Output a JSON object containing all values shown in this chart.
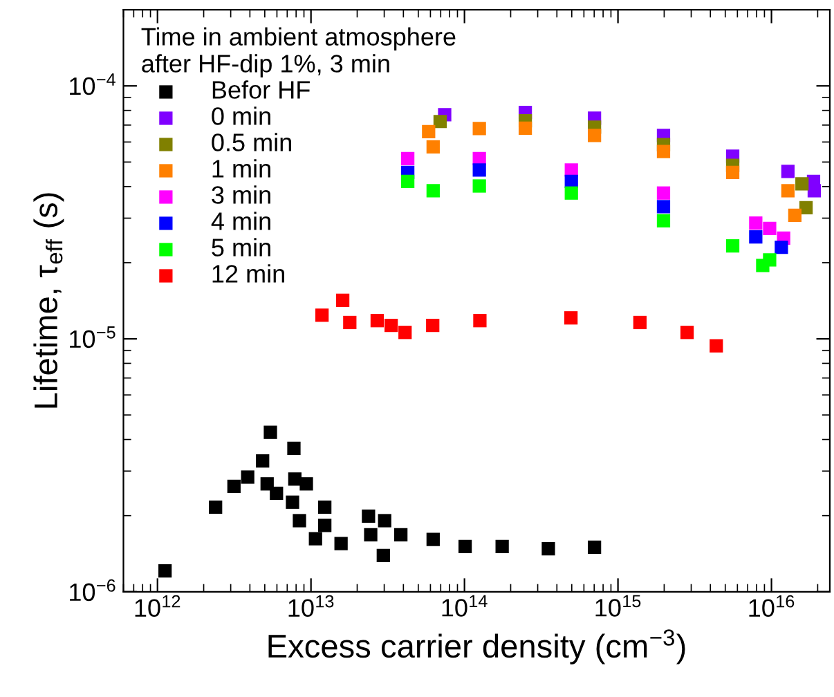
{
  "chart_data": {
    "type": "scatter",
    "xlabel": "Excess carrier density (cm$^{−3}$)",
    "ylabel": "Lifetime, τ$_{eff}$ (s)",
    "legend_title": "Time in ambient atmosphere\nafter HF-dip 1%, 3 min",
    "log": "xy",
    "marker": "square",
    "legend": "top left",
    "grid": false,
    "xlim": [
      600000000000.0,
      2.4e+16
    ],
    "ylim": [
      1e-06,
      0.0002
    ],
    "xticks": [
      {
        "value": 1000000000000.0,
        "label": "10$^{12}$"
      },
      {
        "value": 10000000000000.0,
        "label": "10$^{13}$"
      },
      {
        "value": 100000000000000.0,
        "label": "10$^{14}$"
      },
      {
        "value": 1000000000000000.0,
        "label": "10$^{15}$"
      },
      {
        "value": 1e+16,
        "label": "10$^{16}$"
      }
    ],
    "yticks": [
      {
        "value": 1e-06,
        "label": "10$^{−6}$"
      },
      {
        "value": 1e-05,
        "label": "10$^{−5}$"
      },
      {
        "value": 0.0001,
        "label": "10$^{−4}$"
      }
    ],
    "series": [
      {
        "name": "Befor HF",
        "color": "#000000",
        "x": [
          1120000000000.0,
          2390000000000.0,
          3150000000000.0,
          3870000000000.0,
          4840000000000.0,
          5440000000000.0,
          5180000000000.0,
          5960000000000.0,
          7740000000000.0,
          7850000000000.0,
          7580000000000.0,
          9330000000000.0,
          8410000000000.0,
          10700000000000.0,
          12300000000000.0,
          12300000000000.0,
          15700000000000.0,
          23700000000000.0,
          24500000000000.0,
          30200000000000.0,
          29600000000000.0,
          38500000000000.0,
          62500000000000.0,
          101000000000000.0,
          176000000000000.0,
          352000000000000.0,
          703000000000000.0
        ],
        "values": [
          1.21e-06,
          2.16e-06,
          2.61e-06,
          2.84e-06,
          3.29e-06,
          4.27e-06,
          2.67e-06,
          2.45e-06,
          3.69e-06,
          2.79e-06,
          2.26e-06,
          2.67e-06,
          1.91e-06,
          1.62e-06,
          2.16e-06,
          1.83e-06,
          1.55e-06,
          1.99e-06,
          1.68e-06,
          1.91e-06,
          1.39e-06,
          1.68e-06,
          1.61e-06,
          1.51e-06,
          1.51e-06,
          1.48e-06,
          1.5e-06
        ]
      },
      {
        "name": "0 min",
        "color": "#8000ff",
        "x": [
          74300000000000.0,
          249000000000000.0,
          703000000000000.0,
          1980000000000000.0,
          5590000000000000.0,
          1.28e+16,
          1.88e+16,
          1.9e+16
        ],
        "values": [
          7.69e-05,
          7.85e-05,
          7.46e-05,
          6.37e-05,
          5.27e-05,
          4.59e-05,
          4.19e-05,
          3.85e-05
        ]
      },
      {
        "name": "0.5 min",
        "color": "#808000",
        "x": [
          69400000000000.0,
          249000000000000.0,
          703000000000000.0,
          1980000000000000.0,
          5590000000000000.0,
          1.58e+16,
          1.68e+16
        ],
        "values": [
          7.23e-05,
          7.28e-05,
          6.87e-05,
          5.86e-05,
          4.85e-05,
          4.1e-05,
          3.3e-05
        ]
      },
      {
        "name": "1 min",
        "color": "#ff8000",
        "x": [
          58400000000000.0,
          62500000000000.0,
          125000000000000.0,
          249000000000000.0,
          703000000000000.0,
          1980000000000000.0,
          5590000000000000.0,
          1.28e+16,
          1.42e+16
        ],
        "values": [
          6.59e-05,
          5.74e-05,
          6.78e-05,
          6.81e-05,
          6.37e-05,
          5.5e-05,
          4.55e-05,
          3.85e-05,
          3.08e-05
        ]
      },
      {
        "name": "3 min",
        "color": "#ff00ff",
        "x": [
          42700000000000.0,
          125000000000000.0,
          497000000000000.0,
          1980000000000000.0,
          7900000000000000.0,
          9730000000000000.0,
          1.2e+16
        ],
        "values": [
          5.16e-05,
          5.16e-05,
          4.65e-05,
          3.77e-05,
          2.87e-05,
          2.73e-05,
          2.5e-05
        ]
      },
      {
        "name": "4 min",
        "color": "#0000ff",
        "x": [
          42700000000000.0,
          125000000000000.0,
          497000000000000.0,
          1980000000000000.0,
          7900000000000000.0,
          1.16e+16
        ],
        "values": [
          4.55e-05,
          4.65e-05,
          4.19e-05,
          3.33e-05,
          2.53e-05,
          2.3e-05
        ]
      },
      {
        "name": "5 min",
        "color": "#00ff00",
        "x": [
          42700000000000.0,
          62500000000000.0,
          125000000000000.0,
          497000000000000.0,
          1980000000000000.0,
          5590000000000000.0,
          8770000000000000.0,
          9730000000000000.0
        ],
        "values": [
          4.19e-05,
          3.85e-05,
          4.02e-05,
          3.77e-05,
          2.93e-05,
          2.33e-05,
          1.95e-05,
          2.05e-05
        ]
      },
      {
        "name": "12 min",
        "color": "#ff0000",
        "x": [
          11800000000000.0,
          16100000000000.0,
          17900000000000.0,
          27000000000000.0,
          33300000000000.0,
          41000000000000.0,
          62100000000000.0,
          126000000000000.0,
          494000000000000.0,
          1390000000000000.0,
          2820000000000000.0,
          4370000000000000.0
        ],
        "values": [
          1.24e-05,
          1.42e-05,
          1.16e-05,
          1.18e-05,
          1.13e-05,
          1.06e-05,
          1.13e-05,
          1.18e-05,
          1.21e-05,
          1.16e-05,
          1.06e-05,
          9.39e-06
        ]
      }
    ]
  }
}
